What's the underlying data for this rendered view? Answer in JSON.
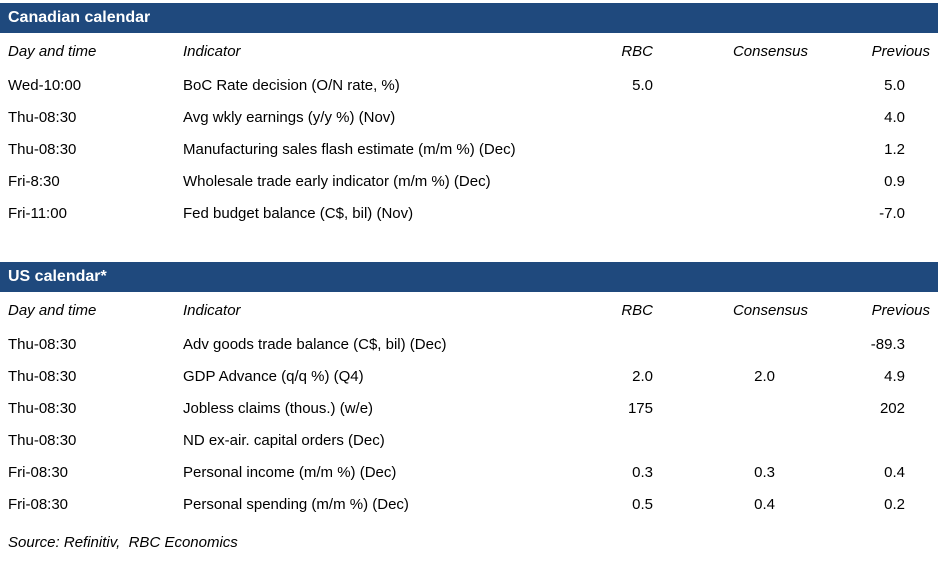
{
  "colors": {
    "title_bar_bg": "#1F497D",
    "title_bar_text": "#FFFFFF",
    "body_text": "#000000"
  },
  "columns": {
    "day": "Day and time",
    "indicator": "Indicator",
    "rbc": "RBC",
    "consensus": "Consensus",
    "previous": "Previous"
  },
  "tables": [
    {
      "title": "Canadian calendar",
      "rows": [
        {
          "cells": [
            "Wed-10:00",
            "BoC Rate decision (O/N rate, %)",
            "5.0",
            "",
            "5.0"
          ]
        },
        {
          "cells": [
            "Thu-08:30",
            "Avg wkly earnings (y/y %) (Nov)",
            "",
            "",
            "4.0"
          ]
        },
        {
          "cells": [
            "Thu-08:30",
            "Manufacturing sales flash estimate (m/m %) (Dec)",
            "",
            "",
            "1.2"
          ]
        },
        {
          "cells": [
            "Fri-8:30",
            "Wholesale trade early indicator (m/m %) (Dec)",
            "",
            "",
            "0.9"
          ]
        },
        {
          "cells": [
            "Fri-11:00",
            "Fed budget balance (C$, bil) (Nov)",
            "",
            "",
            "-7.0"
          ]
        }
      ]
    },
    {
      "title": "US calendar*",
      "rows": [
        {
          "cells": [
            "Thu-08:30",
            "Adv goods trade balance (C$, bil) (Dec)",
            "",
            "",
            "-89.3"
          ]
        },
        {
          "cells": [
            "Thu-08:30",
            "GDP Advance (q/q %) (Q4)",
            "2.0",
            "2.0",
            "4.9"
          ]
        },
        {
          "cells": [
            "Thu-08:30",
            "Jobless claims (thous.) (w/e)",
            "175",
            "",
            "202"
          ]
        },
        {
          "cells": [
            "Thu-08:30",
            "ND ex-air. capital orders (Dec)",
            "",
            "",
            ""
          ]
        },
        {
          "cells": [
            "Fri-08:30",
            "Personal income (m/m %) (Dec)",
            "0.3",
            "0.3",
            "0.4"
          ]
        },
        {
          "cells": [
            "Fri-08:30",
            "Personal spending (m/m %) (Dec)",
            "0.5",
            "0.4",
            "0.2"
          ]
        }
      ]
    }
  ],
  "source": "Source: Refinitiv,  RBC Economics"
}
